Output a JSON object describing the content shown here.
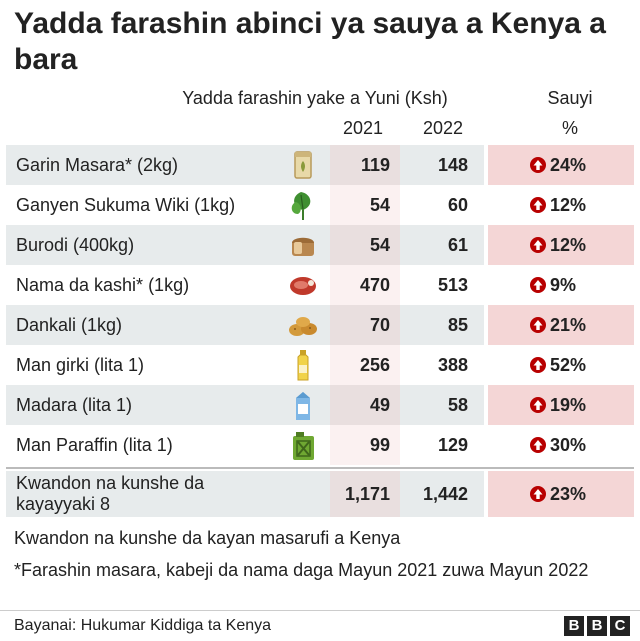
{
  "title": "Yadda farashin abinci ya sauya a Kenya a bara",
  "chart_data": {
    "type": "table",
    "header_price": "Yadda farashin yake a Yuni (Ksh)",
    "header_change": "Sauyi",
    "columns": [
      "2021",
      "2022"
    ],
    "header_change_unit": "%",
    "rows": [
      {
        "label": "Garin Masara* (2kg)",
        "icon": "flour-bag-icon",
        "v2021": "119",
        "v2022": "148",
        "change": "24%"
      },
      {
        "label": "Ganyen Sukuma Wiki (1kg)",
        "icon": "leafy-greens-icon",
        "v2021": "54",
        "v2022": "60",
        "change": "12%"
      },
      {
        "label": "Burodi (400kg)",
        "icon": "bread-icon",
        "v2021": "54",
        "v2022": "61",
        "change": "12%"
      },
      {
        "label": "Nama da kashi* (1kg)",
        "icon": "meat-icon",
        "v2021": "470",
        "v2022": "513",
        "change": "9%"
      },
      {
        "label": "Dankali (1kg)",
        "icon": "potatoes-icon",
        "v2021": "70",
        "v2022": "85",
        "change": "21%"
      },
      {
        "label": "Man girki (lita 1)",
        "icon": "cooking-oil-bottle-icon",
        "v2021": "256",
        "v2022": "388",
        "change": "52%"
      },
      {
        "label": "Madara (lita 1)",
        "icon": "milk-carton-icon",
        "v2021": "49",
        "v2022": "58",
        "change": "19%"
      },
      {
        "label": "Man Paraffin (lita 1)",
        "icon": "jerry-can-icon",
        "v2021": "99",
        "v2022": "129",
        "change": "30%"
      }
    ],
    "total": {
      "label": "Kwandon na kunshe da kayayyaki 8",
      "v2021": "1,171",
      "v2022": "1,442",
      "change": "23%"
    },
    "colors": {
      "increase_arrow": "#b80000",
      "shaded_row": "#e7ebec",
      "change_shade": "#f4d6d6"
    }
  },
  "notes": {
    "basket": "Kwandon na kunshe da kayan masarufi a Kenya",
    "footnote": "*Farashin masara, kabeji da nama daga Mayun 2021 zuwa Mayun 2022"
  },
  "source": "Bayanai: Hukumar Kiddiga ta Kenya",
  "logo": [
    "B",
    "B",
    "C"
  ]
}
